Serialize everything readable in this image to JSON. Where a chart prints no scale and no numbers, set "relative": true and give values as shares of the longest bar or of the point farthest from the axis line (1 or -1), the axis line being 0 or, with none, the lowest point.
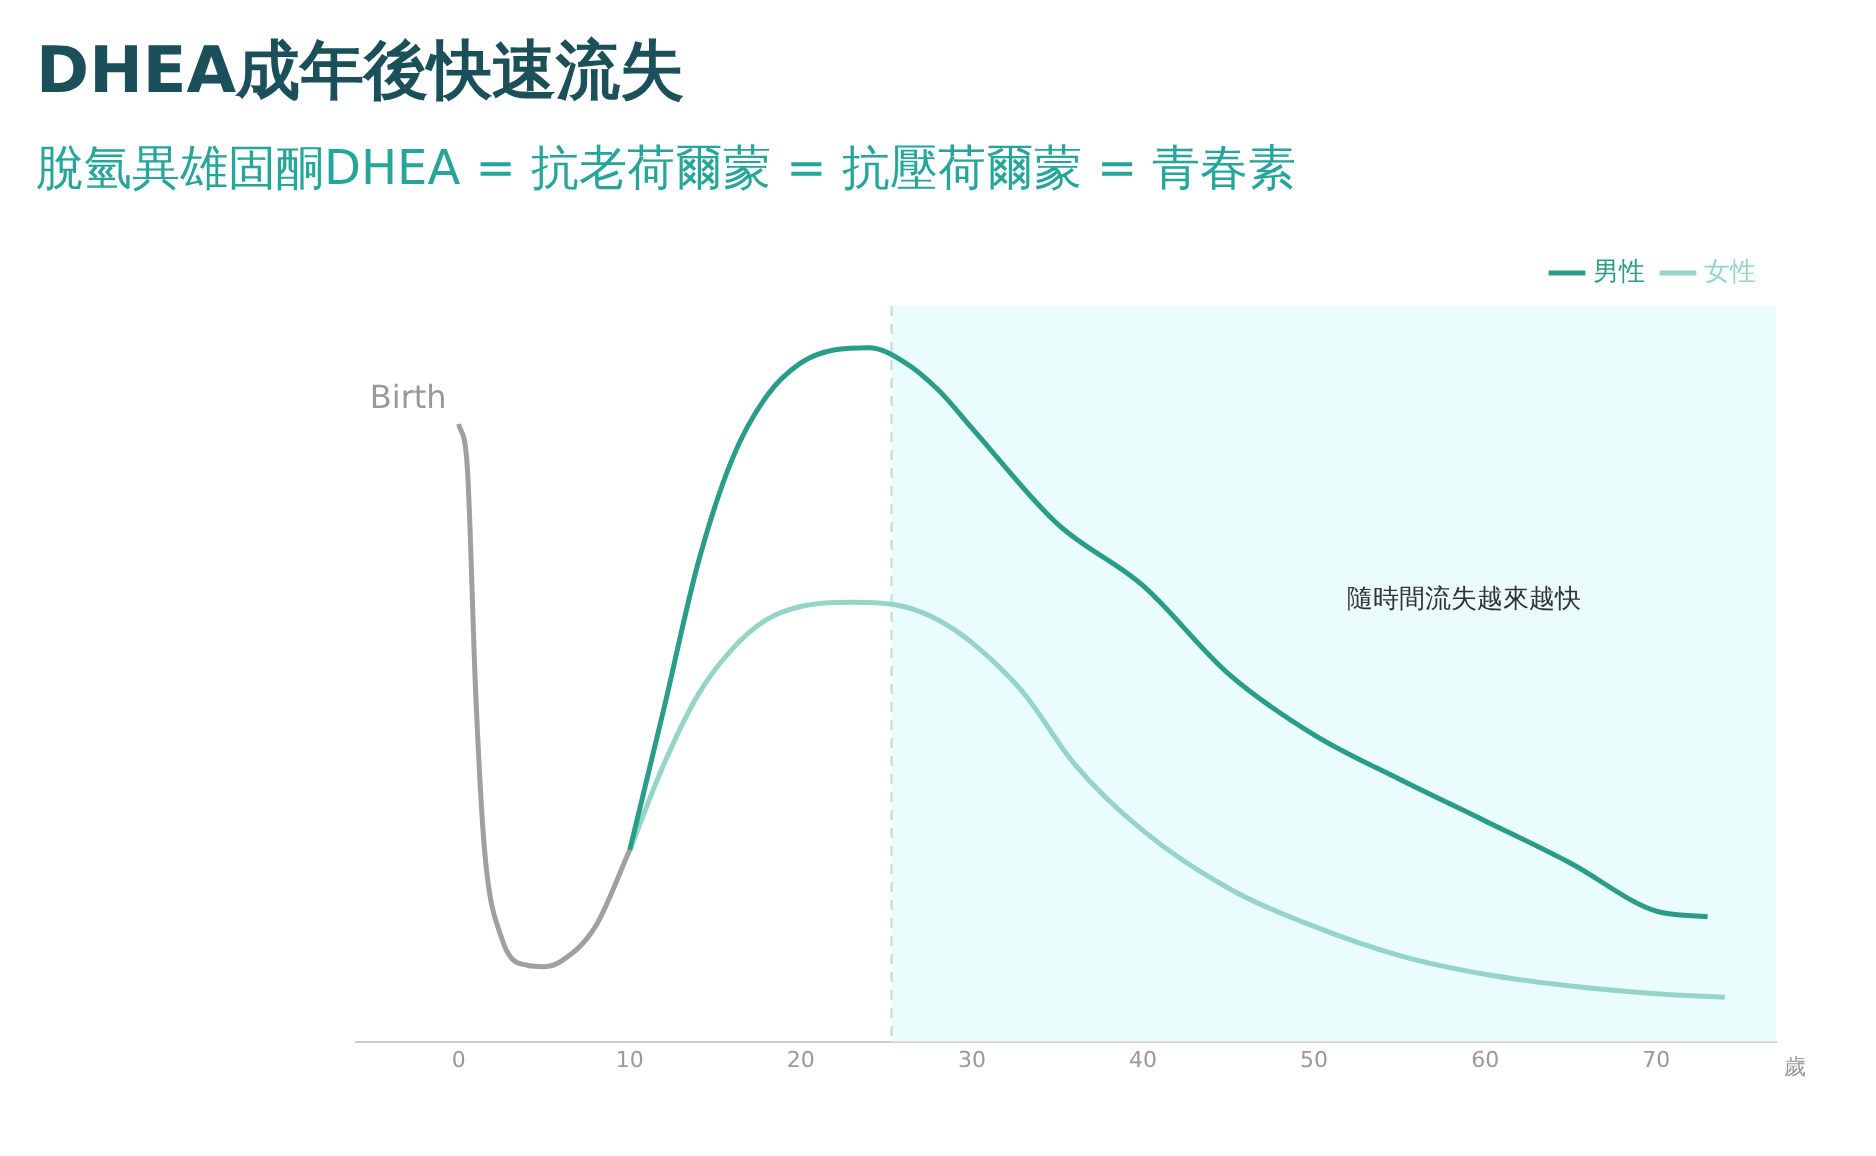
{
  "chart_data": {
    "type": "line",
    "title": "DHEA成年後快速流失",
    "subtitle": "脫氫異雄固酮DHEA = 抗老荷爾蒙 = 抗壓荷爾蒙 = 青春素",
    "xlabel": "歲",
    "relative": true,
    "xlim": [
      -6,
      77
    ],
    "xticks": [
      0,
      10,
      20,
      30,
      40,
      50,
      60,
      70
    ],
    "grid": false,
    "legend": "top right",
    "marker": "none",
    "line_style": "solid",
    "series": [
      {
        "color": "#a0a0a0",
        "x": [
          0,
          0.5,
          1,
          1.5,
          2.5,
          4,
          5,
          6,
          8,
          10
        ],
        "values": [
          0.89,
          0.83,
          0.5,
          0.28,
          0.15,
          0.11,
          0.108,
          0.116,
          0.166,
          0.276
        ]
      },
      {
        "name": "男性",
        "color": "#2a9d8a",
        "x": [
          10,
          12,
          14,
          16,
          18,
          20,
          22,
          24,
          26,
          28,
          30,
          35,
          40,
          45,
          50,
          55,
          60,
          65,
          70,
          73
        ],
        "values": [
          0.276,
          0.48,
          0.69,
          0.84,
          0.93,
          0.978,
          0.997,
          1,
          0.98,
          0.94,
          0.884,
          0.746,
          0.657,
          0.53,
          0.442,
          0.378,
          0.318,
          0.257,
          0.188,
          0.18
        ]
      },
      {
        "name": "女性",
        "color": "#94d5c8",
        "x": [
          10,
          12,
          14,
          16,
          18,
          20,
          23,
          26,
          28,
          30,
          33,
          36,
          40,
          45,
          50,
          55,
          60,
          65,
          70,
          74
        ],
        "values": [
          0.276,
          0.4,
          0.5,
          0.566,
          0.608,
          0.627,
          0.633,
          0.627,
          0.608,
          0.575,
          0.503,
          0.4,
          0.304,
          0.221,
          0.166,
          0.124,
          0.097,
          0.08,
          0.069,
          0.064
        ]
      }
    ],
    "bands": [
      {
        "axis": "x",
        "from": 25.3,
        "to": 77,
        "color": "#ebfcfd"
      }
    ],
    "ref_lines": [
      {
        "axis": "x",
        "value": 25.3,
        "color": "#b8dfe0",
        "line_style": "dashed"
      }
    ],
    "annotations": [
      {
        "text": "Birth",
        "x": 0,
        "y": 0.89
      },
      "隨時間流失越來越快"
    ]
  }
}
